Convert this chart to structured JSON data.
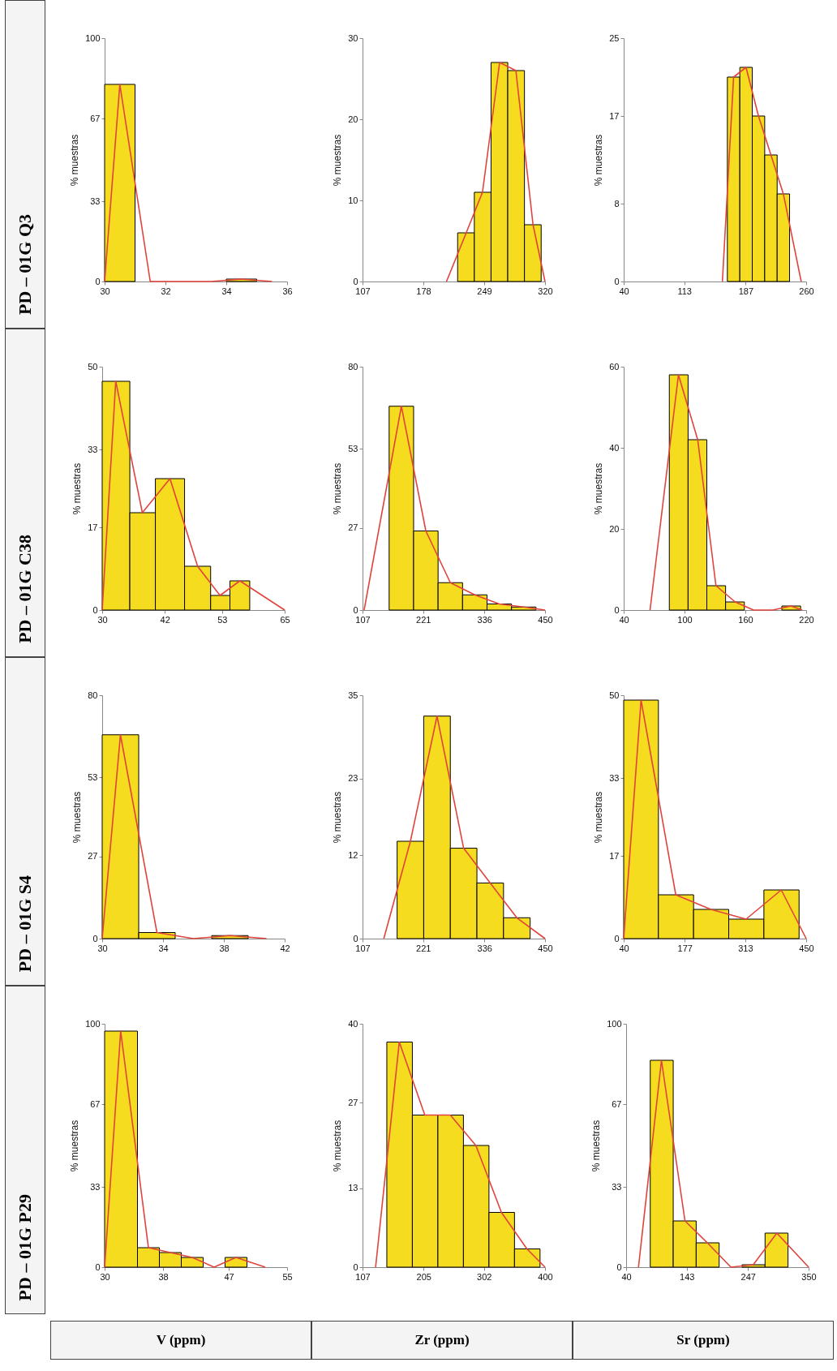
{
  "chart_data": [
    {
      "type": "histogram",
      "title": "PD – 01G Q3",
      "ylabel": "% muestras",
      "xlim": [
        30,
        36
      ],
      "xticks": [
        30,
        32,
        34,
        36
      ],
      "ylim": [
        0,
        100
      ],
      "yticks": [
        0,
        33,
        67,
        100
      ],
      "bins": [
        30,
        31,
        32,
        33,
        34,
        35
      ],
      "series": [
        {
          "type": "histogram",
          "color": "#f5dc1e",
          "values": [
            81,
            0,
            0,
            0,
            1
          ]
        },
        {
          "type": "line",
          "color": "#e0443c",
          "x": [
            30,
            30.5,
            31.5,
            32.5,
            33.5,
            34.5,
            35.5
          ],
          "values": [
            0,
            81,
            0,
            0,
            0,
            1,
            0
          ]
        }
      ]
    },
    {
      "type": "histogram",
      "ylabel": "% muestras",
      "xlim": [
        107,
        320
      ],
      "xticks": [
        107,
        178,
        249,
        320
      ],
      "ylim": [
        0,
        30
      ],
      "yticks": [
        0,
        10,
        20,
        30
      ],
      "bins": [
        218,
        237.5,
        257,
        276.5,
        296,
        315.5
      ],
      "series": [
        {
          "type": "histogram",
          "color": "#f5dc1e",
          "values": [
            6,
            11,
            27,
            26,
            7
          ]
        },
        {
          "type": "line",
          "color": "#e0443c",
          "x": [
            205,
            228,
            247,
            267,
            286,
            306,
            320
          ],
          "values": [
            0,
            6,
            11,
            27,
            26,
            7,
            0
          ]
        }
      ]
    },
    {
      "type": "histogram",
      "ylabel": "% muestras",
      "xlim": [
        40,
        260
      ],
      "xticks": [
        40,
        113,
        187,
        260
      ],
      "ylim": [
        0,
        25
      ],
      "yticks": [
        0,
        8,
        17,
        25
      ],
      "bins": [
        165,
        180,
        195,
        210,
        225,
        240
      ],
      "series": [
        {
          "type": "histogram",
          "color": "#f5dc1e",
          "values": [
            21,
            22,
            17,
            13,
            9
          ]
        },
        {
          "type": "line",
          "color": "#e0443c",
          "x": [
            159,
            172.5,
            187.5,
            202.5,
            217.5,
            232.5,
            254
          ],
          "values": [
            0,
            21,
            22,
            17,
            13,
            9,
            0
          ]
        }
      ]
    },
    {
      "type": "histogram",
      "title": "PD – 01G C38",
      "ylabel": "% muestras",
      "xlim": [
        30,
        65
      ],
      "xticks": [
        30,
        42,
        53,
        65
      ],
      "ylim": [
        0,
        50
      ],
      "yticks": [
        0,
        17,
        33,
        50
      ],
      "bins": [
        30,
        35.3,
        40.2,
        45.8,
        50.8,
        54.5,
        58.3
      ],
      "series": [
        {
          "type": "histogram",
          "color": "#f5dc1e",
          "values": [
            47,
            20,
            27,
            9,
            3,
            6
          ]
        },
        {
          "type": "line",
          "color": "#e0443c",
          "x": [
            30,
            32.6,
            37.7,
            43,
            48.3,
            52.6,
            56.4,
            65
          ],
          "values": [
            0,
            47,
            20,
            27,
            9,
            3,
            6,
            0
          ]
        }
      ]
    },
    {
      "type": "histogram",
      "ylabel": "% muestras",
      "xlim": [
        107,
        450
      ],
      "xticks": [
        107,
        221,
        336,
        450
      ],
      "ylim": [
        0,
        80
      ],
      "yticks": [
        0,
        27,
        53,
        80
      ],
      "bins": [
        157,
        203,
        249,
        295,
        341,
        387,
        433
      ],
      "series": [
        {
          "type": "histogram",
          "color": "#f5dc1e",
          "values": [
            67,
            26,
            9,
            5,
            2,
            1
          ]
        },
        {
          "type": "line",
          "color": "#e0443c",
          "x": [
            110,
            180,
            226,
            272,
            318,
            364,
            410,
            450
          ],
          "values": [
            0,
            67,
            26,
            9,
            5,
            2,
            1,
            0
          ]
        }
      ]
    },
    {
      "type": "histogram",
      "ylabel": "% muestras",
      "xlim": [
        40,
        220
      ],
      "xticks": [
        40,
        100,
        160,
        220
      ],
      "ylim": [
        0,
        60
      ],
      "yticks": [
        0,
        20,
        40,
        60
      ],
      "bins": [
        85,
        103.5,
        122,
        140.5,
        159,
        177.5,
        196,
        214.5
      ],
      "series": [
        {
          "type": "histogram",
          "color": "#f5dc1e",
          "values": [
            58,
            42,
            6,
            2,
            0,
            0,
            1
          ]
        },
        {
          "type": "line",
          "color": "#e0443c",
          "x": [
            66,
            94,
            113,
            131,
            150,
            168,
            187,
            205,
            216
          ],
          "values": [
            0,
            58,
            42,
            6,
            2,
            0,
            0,
            1,
            0
          ]
        }
      ]
    },
    {
      "type": "histogram",
      "title": "PD – 01G S4",
      "ylabel": "% muestras",
      "xlim": [
        30,
        42
      ],
      "xticks": [
        30,
        34,
        38,
        42
      ],
      "ylim": [
        0,
        80
      ],
      "yticks": [
        0,
        27,
        53,
        80
      ],
      "bins": [
        30,
        32.4,
        34.8,
        37.2,
        39.6,
        42
      ],
      "series": [
        {
          "type": "histogram",
          "color": "#f5dc1e",
          "values": [
            67,
            2,
            0,
            1,
            0
          ]
        },
        {
          "type": "line",
          "color": "#e0443c",
          "x": [
            30,
            31.2,
            33.6,
            36,
            38.4,
            40.8
          ],
          "values": [
            0,
            67,
            2,
            0,
            1,
            0
          ]
        }
      ]
    },
    {
      "type": "histogram",
      "ylabel": "% muestras",
      "xlim": [
        107,
        450
      ],
      "xticks": [
        107,
        221,
        336,
        450
      ],
      "ylim": [
        0,
        35
      ],
      "yticks": [
        0,
        12,
        23,
        35
      ],
      "bins": [
        172,
        222,
        272,
        322,
        372,
        422
      ],
      "series": [
        {
          "type": "histogram",
          "color": "#f5dc1e",
          "values": [
            14,
            32,
            13,
            8,
            3
          ]
        },
        {
          "type": "line",
          "color": "#e0443c",
          "x": [
            147,
            197,
            247,
            297,
            347,
            397,
            450
          ],
          "values": [
            0,
            14,
            32,
            13,
            8,
            3,
            0
          ]
        }
      ]
    },
    {
      "type": "histogram",
      "ylabel": "% muestras",
      "xlim": [
        40,
        450
      ],
      "xticks": [
        40,
        177,
        313,
        450
      ],
      "ylim": [
        0,
        50
      ],
      "yticks": [
        0,
        17,
        33,
        50
      ],
      "bins": [
        40,
        118,
        197,
        276,
        355,
        434
      ],
      "series": [
        {
          "type": "histogram",
          "color": "#f5dc1e",
          "values": [
            49,
            9,
            6,
            4,
            10
          ]
        },
        {
          "type": "line",
          "color": "#e0443c",
          "x": [
            40,
            79,
            157,
            236,
            315,
            394,
            450
          ],
          "values": [
            0,
            49,
            9,
            6,
            4,
            10,
            0
          ]
        }
      ]
    },
    {
      "type": "histogram",
      "title": "PD – 01G P29",
      "annotations": [
        "V (ppm)"
      ],
      "ylabel": "% muestras",
      "xlim": [
        30,
        55
      ],
      "xticks": [
        30,
        38,
        47,
        55
      ],
      "ylim": [
        0,
        100
      ],
      "yticks": [
        0,
        33,
        67,
        100
      ],
      "bins": [
        30,
        34.5,
        37.5,
        40.5,
        43.5,
        46.5,
        49.5
      ],
      "series": [
        {
          "type": "histogram",
          "color": "#f5dc1e",
          "values": [
            97,
            8,
            6,
            4,
            0,
            4
          ]
        },
        {
          "type": "line",
          "color": "#e0443c",
          "x": [
            30,
            32.2,
            36,
            39,
            42,
            45,
            48,
            52
          ],
          "values": [
            0,
            97,
            8,
            6,
            4,
            0,
            4,
            0
          ]
        }
      ]
    },
    {
      "type": "histogram",
      "annotations": [
        "Zr (ppm)"
      ],
      "ylabel": "% muestras",
      "xlim": [
        107,
        400
      ],
      "xticks": [
        107,
        205,
        302,
        400
      ],
      "ylim": [
        0,
        40
      ],
      "yticks": [
        0,
        13,
        27,
        40
      ],
      "bins": [
        146,
        187,
        228,
        269,
        310,
        351,
        392
      ],
      "series": [
        {
          "type": "histogram",
          "color": "#f5dc1e",
          "values": [
            37,
            25,
            25,
            20,
            9,
            3
          ]
        },
        {
          "type": "line",
          "color": "#e0443c",
          "x": [
            128,
            166,
            207,
            248,
            289,
            330,
            371,
            400
          ],
          "values": [
            0,
            37,
            25,
            25,
            20,
            9,
            3,
            0
          ]
        }
      ]
    },
    {
      "type": "histogram",
      "annotations": [
        "Sr (ppm)"
      ],
      "ylabel": "% muestras",
      "xlim": [
        40,
        350
      ],
      "xticks": [
        40,
        143,
        247,
        350
      ],
      "ylim": [
        0,
        100
      ],
      "yticks": [
        0,
        33,
        67,
        100
      ],
      "bins": [
        81,
        120,
        159,
        198,
        237,
        276,
        315
      ],
      "series": [
        {
          "type": "histogram",
          "color": "#f5dc1e",
          "values": [
            85,
            19,
            10,
            0,
            1,
            14
          ]
        },
        {
          "type": "line",
          "color": "#e0443c",
          "x": [
            61,
            100,
            140,
            178,
            218,
            256,
            296,
            350
          ],
          "values": [
            0,
            85,
            19,
            10,
            0,
            1,
            14,
            0
          ]
        }
      ]
    }
  ]
}
